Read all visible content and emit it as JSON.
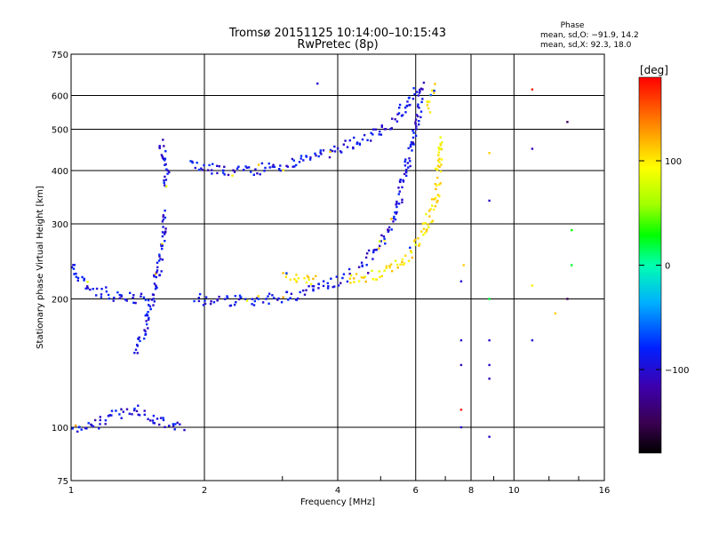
{
  "chart_data": {
    "type": "scatter",
    "title": "Tromsø 20151125 10:14:00–10:15:43",
    "subtitle": "RwPretec (8p)",
    "xlabel": "Frequency [MHz]",
    "ylabel": "Stationary phase Virtual Height [km]",
    "xscale": "log",
    "yscale": "log",
    "xlim": [
      1,
      16
    ],
    "ylim": [
      75,
      750
    ],
    "xticks": [
      1,
      2,
      4,
      6,
      8,
      10,
      16
    ],
    "xtick_labels": [
      "1",
      "2",
      "4",
      "6",
      "8",
      "10",
      "16"
    ],
    "yticks": [
      75,
      100,
      200,
      300,
      400,
      500,
      600,
      750
    ],
    "ytick_labels": [
      "75",
      "100",
      "200",
      "300",
      "400",
      "500",
      "600",
      "750"
    ],
    "grid": true,
    "phase_stats": {
      "heading": "Phase",
      "line_o": "mean, sd,O: −91.9, 14.2",
      "line_x": "mean, sd,X:  92.3, 18.0"
    },
    "colorbar": {
      "label": "[deg]",
      "range": [
        -180,
        180
      ],
      "ticks": [
        100,
        0,
        -100
      ],
      "tick_labels": [
        "100",
        "0",
        "−100"
      ],
      "colormap": "rainbow: black → purple → blue → cyan → green → yellow → orange → red"
    },
    "traces": [
      {
        "phase": -92,
        "points": [
          [
            1.0,
            240
          ],
          [
            1.04,
            225
          ],
          [
            1.1,
            212
          ],
          [
            1.2,
            206
          ],
          [
            1.3,
            202
          ],
          [
            1.4,
            200
          ],
          [
            1.5,
            201
          ]
        ]
      },
      {
        "phase": -92,
        "points": [
          [
            1.4,
            150
          ],
          [
            1.45,
            165
          ],
          [
            1.5,
            185
          ],
          [
            1.55,
            215
          ],
          [
            1.6,
            250
          ],
          [
            1.62,
            300
          ],
          [
            1.63,
            320
          ]
        ]
      },
      {
        "phase": -92,
        "points": [
          [
            1.6,
            470
          ],
          [
            1.62,
            420
          ],
          [
            1.64,
            390
          ],
          [
            1.62,
            360
          ]
        ]
      },
      {
        "phase": -92,
        "points": [
          [
            1.0,
            98
          ],
          [
            1.1,
            100
          ],
          [
            1.2,
            104
          ],
          [
            1.3,
            108
          ],
          [
            1.4,
            110
          ],
          [
            1.5,
            106
          ],
          [
            1.6,
            104
          ],
          [
            1.7,
            102
          ],
          [
            1.8,
            100
          ]
        ]
      },
      {
        "phase": -92,
        "points": [
          [
            1.9,
            200
          ],
          [
            2.0,
            199
          ],
          [
            2.2,
            198
          ],
          [
            2.5,
            198
          ],
          [
            2.8,
            200
          ],
          [
            3.1,
            203
          ],
          [
            3.4,
            208
          ],
          [
            3.7,
            214
          ],
          [
            4.0,
            220
          ],
          [
            4.3,
            230
          ]
        ]
      },
      {
        "phase": -92,
        "points": [
          [
            4.5,
            240
          ],
          [
            4.8,
            255
          ],
          [
            5.0,
            270
          ],
          [
            5.3,
            300
          ],
          [
            5.5,
            340
          ],
          [
            5.7,
            400
          ],
          [
            5.9,
            460
          ],
          [
            6.05,
            520
          ],
          [
            6.15,
            580
          ],
          [
            6.2,
            640
          ]
        ]
      },
      {
        "phase": -92,
        "points": [
          [
            1.85,
            415
          ],
          [
            1.95,
            410
          ],
          [
            2.1,
            402
          ],
          [
            2.3,
            400
          ],
          [
            2.6,
            402
          ],
          [
            3.0,
            410
          ],
          [
            3.4,
            425
          ],
          [
            3.8,
            440
          ],
          [
            4.2,
            460
          ],
          [
            4.6,
            480
          ],
          [
            5.0,
            500
          ],
          [
            5.4,
            520
          ],
          [
            5.7,
            570
          ],
          [
            6.0,
            630
          ]
        ]
      },
      {
        "phase": 100,
        "points": [
          [
            4.2,
            220
          ],
          [
            4.6,
            225
          ],
          [
            5.0,
            228
          ],
          [
            5.5,
            240
          ],
          [
            5.8,
            255
          ],
          [
            6.1,
            270
          ],
          [
            6.3,
            290
          ],
          [
            6.5,
            320
          ],
          [
            6.7,
            360
          ],
          [
            6.8,
            420
          ],
          [
            6.9,
            480
          ]
        ]
      },
      {
        "phase": 100,
        "points": [
          [
            3.0,
            225
          ],
          [
            3.3,
            222
          ],
          [
            3.6,
            220
          ]
        ]
      },
      {
        "phase": 100,
        "points": [
          [
            6.4,
            560
          ],
          [
            6.5,
            600
          ],
          [
            6.55,
            640
          ]
        ]
      }
    ],
    "isolated_points": [
      {
        "x": 7.6,
        "y": 220,
        "phase": -100
      },
      {
        "x": 7.6,
        "y": 160,
        "phase": -100
      },
      {
        "x": 7.6,
        "y": 140,
        "phase": -110
      },
      {
        "x": 7.6,
        "y": 110,
        "phase": 170
      },
      {
        "x": 7.6,
        "y": 100,
        "phase": -100
      },
      {
        "x": 7.7,
        "y": 240,
        "phase": 110
      },
      {
        "x": 8.8,
        "y": 440,
        "phase": 110
      },
      {
        "x": 8.8,
        "y": 340,
        "phase": -100
      },
      {
        "x": 8.8,
        "y": 200,
        "phase": 20
      },
      {
        "x": 8.8,
        "y": 160,
        "phase": -100
      },
      {
        "x": 8.8,
        "y": 140,
        "phase": -100
      },
      {
        "x": 8.8,
        "y": 130,
        "phase": -110
      },
      {
        "x": 8.8,
        "y": 95,
        "phase": -100
      },
      {
        "x": 11.0,
        "y": 620,
        "phase": 170
      },
      {
        "x": 11.0,
        "y": 450,
        "phase": -110
      },
      {
        "x": 11.0,
        "y": 215,
        "phase": 100
      },
      {
        "x": 11.0,
        "y": 160,
        "phase": -100
      },
      {
        "x": 13.2,
        "y": 520,
        "phase": -150
      },
      {
        "x": 13.2,
        "y": 200,
        "phase": -150
      },
      {
        "x": 13.5,
        "y": 290,
        "phase": 30
      },
      {
        "x": 13.5,
        "y": 240,
        "phase": 20
      },
      {
        "x": 12.4,
        "y": 185,
        "phase": 110
      },
      {
        "x": 3.6,
        "y": 640,
        "phase": -100
      }
    ]
  }
}
